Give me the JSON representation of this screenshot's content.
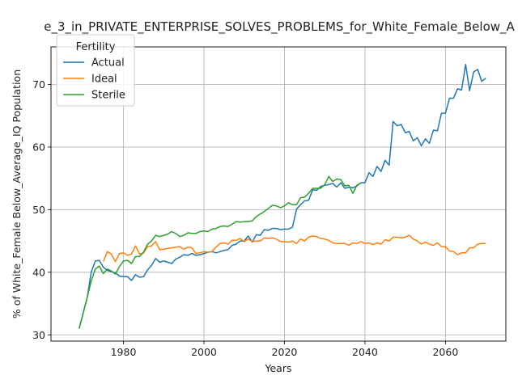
{
  "chart_data": {
    "type": "line",
    "title": "e_3_in_PRIVATE_ENTERPRISE_SOLVES_PROBLEMS_for_White_Female_Below_A",
    "xlabel": "Years",
    "ylabel": "% of White_Female Below_Average_IQ Population",
    "xlim": [
      1962,
      2075
    ],
    "ylim": [
      29,
      76
    ],
    "xticks": [
      1980,
      2000,
      2020,
      2040,
      2060
    ],
    "yticks": [
      30,
      40,
      50,
      60,
      70
    ],
    "grid": true,
    "legend": {
      "title": "Fertility",
      "placement": "top-left"
    },
    "series": [
      {
        "name": "Actual",
        "color": "#1f77b4",
        "points": [
          [
            1969,
            31
          ],
          [
            1971,
            36
          ],
          [
            1972,
            40
          ],
          [
            1973,
            41.8
          ],
          [
            1974,
            41.9
          ],
          [
            1975,
            40.8
          ],
          [
            1976,
            40.3
          ],
          [
            1977,
            40.1
          ],
          [
            1978,
            39.9
          ],
          [
            1979,
            39.4
          ],
          [
            1980,
            39.3
          ],
          [
            1981,
            39.3
          ],
          [
            1982,
            38.7
          ],
          [
            1983,
            39.6
          ],
          [
            1984,
            39.2
          ],
          [
            1985,
            39.3
          ],
          [
            1986,
            40.4
          ],
          [
            1987,
            41.1
          ],
          [
            1988,
            42.2
          ],
          [
            1989,
            41.6
          ],
          [
            1990,
            41.8
          ],
          [
            1991,
            41.6
          ],
          [
            1992,
            41.4
          ],
          [
            1993,
            42.1
          ],
          [
            1994,
            42.4
          ],
          [
            1995,
            42.8
          ],
          [
            1996,
            42.7
          ],
          [
            1997,
            43.0
          ],
          [
            1998,
            42.7
          ],
          [
            1999,
            42.8
          ],
          [
            2000,
            43.0
          ],
          [
            2001,
            43.2
          ],
          [
            2002,
            43.3
          ],
          [
            2003,
            43.1
          ],
          [
            2004,
            43.3
          ],
          [
            2005,
            43.5
          ],
          [
            2006,
            43.6
          ],
          [
            2007,
            44.3
          ],
          [
            2008,
            44.5
          ],
          [
            2009,
            45.0
          ],
          [
            2010,
            45.0
          ],
          [
            2011,
            45.8
          ],
          [
            2012,
            44.8
          ],
          [
            2013,
            46.0
          ],
          [
            2014,
            45.9
          ],
          [
            2015,
            46.8
          ],
          [
            2016,
            46.7
          ],
          [
            2017,
            47.0
          ],
          [
            2018,
            47.0
          ],
          [
            2019,
            46.8
          ],
          [
            2020,
            46.9
          ],
          [
            2021,
            46.9
          ],
          [
            2022,
            47.2
          ],
          [
            2023,
            50.1
          ],
          [
            2024,
            50.8
          ],
          [
            2025,
            51.4
          ],
          [
            2026,
            51.5
          ],
          [
            2027,
            53.2
          ],
          [
            2028,
            53.1
          ],
          [
            2029,
            53.7
          ],
          [
            2030,
            53.9
          ],
          [
            2031,
            54.0
          ],
          [
            2032,
            54.2
          ],
          [
            2033,
            53.6
          ],
          [
            2034,
            54.3
          ],
          [
            2035,
            53.4
          ],
          [
            2036,
            53.6
          ],
          [
            2037,
            53.5
          ],
          [
            2038,
            53.8
          ],
          [
            2039,
            54.3
          ],
          [
            2040,
            54.3
          ],
          [
            2041,
            55.9
          ],
          [
            2042,
            55.3
          ],
          [
            2043,
            56.9
          ],
          [
            2044,
            56.1
          ],
          [
            2045,
            57.9
          ],
          [
            2046,
            57.1
          ],
          [
            2047,
            64.1
          ],
          [
            2048,
            63.4
          ],
          [
            2049,
            63.6
          ],
          [
            2050,
            62.3
          ],
          [
            2051,
            62.5
          ],
          [
            2052,
            61.0
          ],
          [
            2053,
            61.5
          ],
          [
            2054,
            60.2
          ],
          [
            2055,
            61.3
          ],
          [
            2056,
            60.6
          ],
          [
            2057,
            62.7
          ],
          [
            2058,
            62.6
          ],
          [
            2059,
            65.4
          ],
          [
            2060,
            65.4
          ],
          [
            2061,
            67.8
          ],
          [
            2062,
            67.8
          ],
          [
            2063,
            69.3
          ],
          [
            2064,
            69.1
          ],
          [
            2065,
            73.2
          ],
          [
            2066,
            69.0
          ],
          [
            2067,
            72.0
          ],
          [
            2068,
            72.4
          ],
          [
            2069,
            70.5
          ],
          [
            2070,
            71.0
          ]
        ]
      },
      {
        "name": "Ideal",
        "color": "#ff7f0e",
        "points": [
          [
            1975,
            41.7
          ],
          [
            1976,
            43.3
          ],
          [
            1977,
            42.9
          ],
          [
            1978,
            41.7
          ],
          [
            1979,
            43.0
          ],
          [
            1980,
            43.1
          ],
          [
            1981,
            42.7
          ],
          [
            1982,
            42.9
          ],
          [
            1983,
            44.2
          ],
          [
            1984,
            42.9
          ],
          [
            1985,
            43.1
          ],
          [
            1986,
            44.1
          ],
          [
            1987,
            44.2
          ],
          [
            1988,
            44.9
          ],
          [
            1989,
            43.6
          ],
          [
            1990,
            43.7
          ],
          [
            1991,
            43.8
          ],
          [
            1992,
            43.9
          ],
          [
            1993,
            44.0
          ],
          [
            1994,
            44.1
          ],
          [
            1995,
            43.7
          ],
          [
            1996,
            44.0
          ],
          [
            1997,
            43.9
          ],
          [
            1998,
            43.0
          ],
          [
            1999,
            43.1
          ],
          [
            2000,
            43.3
          ],
          [
            2001,
            43.2
          ],
          [
            2002,
            43.3
          ],
          [
            2003,
            44.0
          ],
          [
            2004,
            44.6
          ],
          [
            2005,
            44.7
          ],
          [
            2006,
            44.5
          ],
          [
            2007,
            45.1
          ],
          [
            2008,
            45.1
          ],
          [
            2009,
            45.4
          ],
          [
            2010,
            44.9
          ],
          [
            2011,
            45.3
          ],
          [
            2012,
            44.9
          ],
          [
            2013,
            45.0
          ],
          [
            2014,
            45.0
          ],
          [
            2015,
            45.5
          ],
          [
            2016,
            45.4
          ],
          [
            2017,
            45.5
          ],
          [
            2018,
            45.3
          ],
          [
            2019,
            44.9
          ],
          [
            2020,
            44.9
          ],
          [
            2021,
            44.8
          ],
          [
            2022,
            45.0
          ],
          [
            2023,
            44.6
          ],
          [
            2024,
            45.3
          ],
          [
            2025,
            45.0
          ],
          [
            2026,
            45.6
          ],
          [
            2027,
            45.8
          ],
          [
            2028,
            45.7
          ],
          [
            2029,
            45.4
          ],
          [
            2030,
            45.3
          ],
          [
            2031,
            45.1
          ],
          [
            2032,
            44.7
          ],
          [
            2033,
            44.6
          ],
          [
            2034,
            44.6
          ],
          [
            2035,
            44.6
          ],
          [
            2036,
            44.3
          ],
          [
            2037,
            44.7
          ],
          [
            2038,
            44.6
          ],
          [
            2039,
            44.9
          ],
          [
            2040,
            44.6
          ],
          [
            2041,
            44.7
          ],
          [
            2042,
            44.4
          ],
          [
            2043,
            44.7
          ],
          [
            2044,
            44.5
          ],
          [
            2045,
            45.2
          ],
          [
            2046,
            45.0
          ],
          [
            2047,
            45.6
          ],
          [
            2048,
            45.6
          ],
          [
            2049,
            45.5
          ],
          [
            2050,
            45.6
          ],
          [
            2051,
            45.9
          ],
          [
            2052,
            45.3
          ],
          [
            2053,
            45.0
          ],
          [
            2054,
            44.5
          ],
          [
            2055,
            44.8
          ],
          [
            2056,
            44.5
          ],
          [
            2057,
            44.3
          ],
          [
            2058,
            44.7
          ],
          [
            2059,
            44.1
          ],
          [
            2060,
            44.1
          ],
          [
            2061,
            43.4
          ],
          [
            2062,
            43.3
          ],
          [
            2063,
            42.8
          ],
          [
            2064,
            43.1
          ],
          [
            2065,
            43.1
          ],
          [
            2066,
            43.9
          ],
          [
            2067,
            43.9
          ],
          [
            2068,
            44.5
          ],
          [
            2069,
            44.6
          ],
          [
            2070,
            44.6
          ]
        ]
      },
      {
        "name": "Sterile",
        "color": "#2ca02c",
        "points": [
          [
            1969,
            31
          ],
          [
            1971,
            36
          ],
          [
            1972,
            38.6
          ],
          [
            1973,
            40.5
          ],
          [
            1974,
            41.0
          ],
          [
            1975,
            39.8
          ],
          [
            1976,
            40.5
          ],
          [
            1977,
            40.2
          ],
          [
            1978,
            39.7
          ],
          [
            1979,
            40.9
          ],
          [
            1980,
            41.8
          ],
          [
            1981,
            41.9
          ],
          [
            1982,
            41.4
          ],
          [
            1983,
            42.5
          ],
          [
            1984,
            42.5
          ],
          [
            1985,
            43.2
          ],
          [
            1986,
            44.5
          ],
          [
            1987,
            45.0
          ],
          [
            1988,
            45.9
          ],
          [
            1989,
            45.7
          ],
          [
            1990,
            45.9
          ],
          [
            1991,
            46.1
          ],
          [
            1992,
            46.5
          ],
          [
            1993,
            46.2
          ],
          [
            1994,
            45.7
          ],
          [
            1995,
            45.9
          ],
          [
            1996,
            46.3
          ],
          [
            1997,
            46.2
          ],
          [
            1998,
            46.2
          ],
          [
            1999,
            46.5
          ],
          [
            2000,
            46.6
          ],
          [
            2001,
            46.5
          ],
          [
            2002,
            46.9
          ],
          [
            2003,
            47.0
          ],
          [
            2004,
            47.3
          ],
          [
            2005,
            47.4
          ],
          [
            2006,
            47.3
          ],
          [
            2007,
            47.7
          ],
          [
            2008,
            48.1
          ],
          [
            2009,
            48.0
          ],
          [
            2010,
            48.1
          ],
          [
            2011,
            48.1
          ],
          [
            2012,
            48.2
          ],
          [
            2013,
            48.9
          ],
          [
            2014,
            49.3
          ],
          [
            2015,
            49.7
          ],
          [
            2016,
            50.2
          ],
          [
            2017,
            50.7
          ],
          [
            2018,
            50.6
          ],
          [
            2019,
            50.3
          ],
          [
            2020,
            50.6
          ],
          [
            2021,
            51.1
          ],
          [
            2022,
            50.8
          ],
          [
            2023,
            50.8
          ],
          [
            2024,
            51.9
          ],
          [
            2025,
            52.0
          ],
          [
            2026,
            52.6
          ],
          [
            2027,
            53.4
          ],
          [
            2028,
            53.4
          ],
          [
            2029,
            53.4
          ],
          [
            2030,
            54.0
          ],
          [
            2031,
            55.3
          ],
          [
            2032,
            54.5
          ],
          [
            2033,
            54.9
          ],
          [
            2034,
            54.8
          ],
          [
            2035,
            53.8
          ],
          [
            2036,
            53.9
          ],
          [
            2037,
            52.6
          ],
          [
            2038,
            53.9
          ],
          [
            2039,
            54.3
          ]
        ]
      }
    ]
  }
}
